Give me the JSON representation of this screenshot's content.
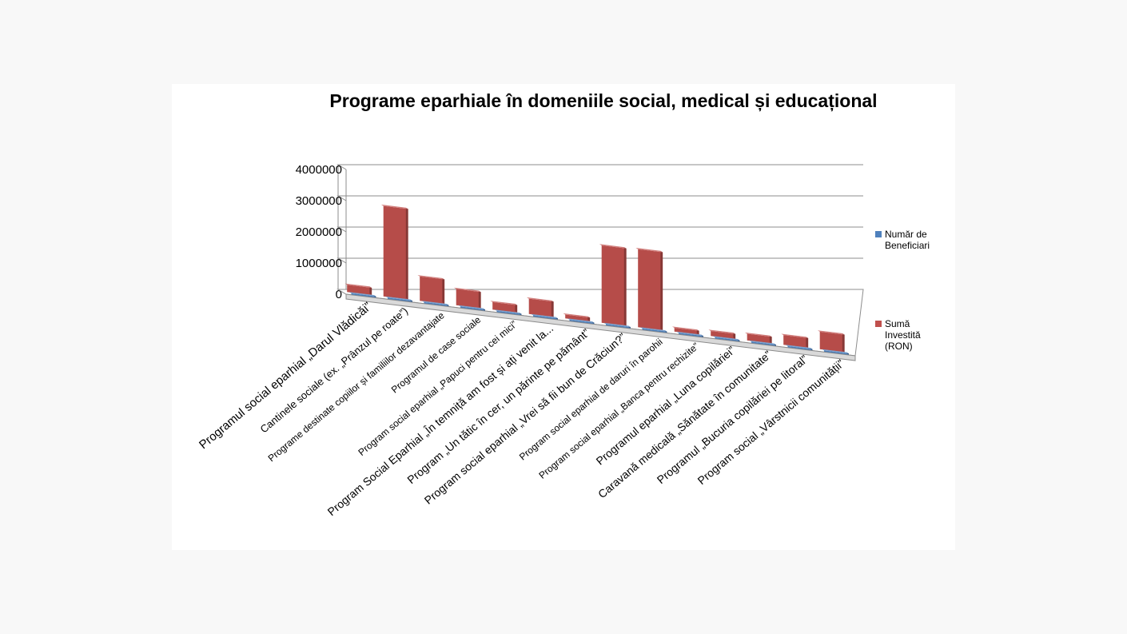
{
  "chart_data": {
    "type": "bar",
    "title": "Programe eparhiale în domeniile social, medical și educațional",
    "categories": [
      "Programul social eparhial „Darul Vlădicăi”",
      "Cantinele sociale (ex. „Prânzul pe roate”)",
      "Programe destinate copiilor și familiilor dezavantajate",
      "Programul de case sociale",
      "Program social eparhial „Papuci pentru cei mici”",
      "Program Social Eparhial „În temniță am fost și ați venit la...",
      "Program „Un tătic în cer, un părinte pe pământ”",
      "Program social eparhial „Vrei să fii bun de Crăciun?”",
      "Program social eparhial de daruri în parohii",
      "Program social eparhial „Banca pentru rechizite”",
      "Programul eparhial „Luna copilăriei”",
      "Caravană medicală „Sănătate în comunitate”",
      "Programul „Bucuria copilăriei pe litoral”",
      "Program social „Vârstnicii comunității”"
    ],
    "series": [
      {
        "name": "Număr de Beneficiari",
        "color": "#4f81bd",
        "values": [
          800,
          1500,
          600,
          300,
          1200,
          200,
          150,
          3000,
          2500,
          1800,
          2000,
          1500,
          400,
          1000
        ]
      },
      {
        "name": "Sumă Investită (RON)",
        "color": "#c0504d",
        "values": [
          230000,
          2900000,
          780000,
          520000,
          240000,
          490000,
          120000,
          2480000,
          2500000,
          120000,
          160000,
          210000,
          310000,
          560000
        ]
      }
    ],
    "y_ticks": [
      "4000000",
      "3000000",
      "2000000",
      "1000000",
      "0"
    ],
    "ylim": [
      0,
      4000000
    ],
    "legend_position": "right",
    "grid": true
  }
}
